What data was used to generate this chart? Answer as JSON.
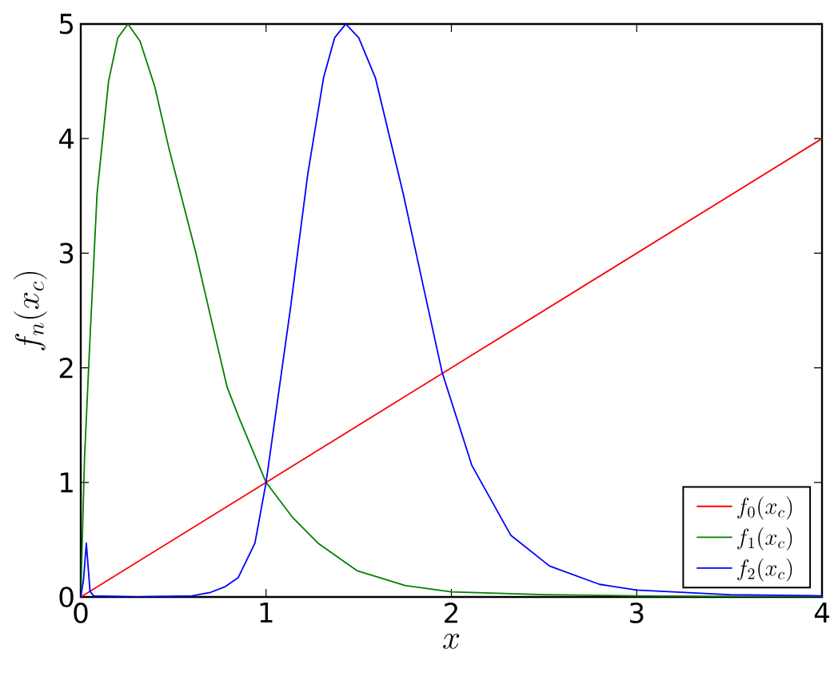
{
  "chart_data": {
    "type": "line",
    "xlabel": "x",
    "ylabel": "f_n(x_c)",
    "xlim": [
      0,
      4
    ],
    "ylim": [
      0,
      5
    ],
    "xticks": [
      0,
      1,
      2,
      3,
      4
    ],
    "yticks": [
      0,
      1,
      2,
      3,
      4,
      5
    ],
    "grid": false,
    "legend": "bottom right",
    "marker": "none",
    "line_style": "solid",
    "series": [
      {
        "name": "f_0(x_c)",
        "color": "#ff0000",
        "x": [
          0,
          4
        ],
        "values": [
          0,
          4
        ]
      },
      {
        "name": "f_1(x_c)",
        "color": "#008000",
        "x": [
          0,
          0.02,
          0.047,
          0.088,
          0.15,
          0.2,
          0.255,
          0.32,
          0.4,
          0.475,
          0.55,
          0.62,
          0.7,
          0.79,
          0.86,
          1.0,
          1.14,
          1.28,
          1.49,
          1.75,
          2.0,
          2.5,
          3.0,
          3.5,
          4.0
        ],
        "values": [
          0,
          1.2,
          2.16,
          3.52,
          4.5,
          4.88,
          5.0,
          4.85,
          4.45,
          3.92,
          3.45,
          3.01,
          2.45,
          1.83,
          1.54,
          1.0,
          0.7,
          0.47,
          0.23,
          0.1,
          0.045,
          0.02,
          0.01,
          0.005,
          0.0
        ]
      },
      {
        "name": "f_2(x_c)",
        "color": "#0000ff",
        "x": [
          0,
          0.015,
          0.03,
          0.05,
          0.07,
          0.3,
          0.6,
          0.7,
          0.78,
          0.85,
          0.94,
          1.0,
          1.13,
          1.225,
          1.31,
          1.37,
          1.43,
          1.5,
          1.59,
          1.74,
          1.85,
          1.95,
          2.11,
          2.32,
          2.53,
          2.8,
          3.0,
          3.5,
          4.0
        ],
        "values": [
          0,
          0.15,
          0.47,
          0.05,
          0.01,
          0.0,
          0.01,
          0.04,
          0.09,
          0.17,
          0.47,
          1.0,
          2.5,
          3.69,
          4.53,
          4.88,
          5.0,
          4.88,
          4.53,
          3.52,
          2.7,
          1.96,
          1.15,
          0.54,
          0.27,
          0.11,
          0.06,
          0.02,
          0.01
        ]
      }
    ]
  }
}
